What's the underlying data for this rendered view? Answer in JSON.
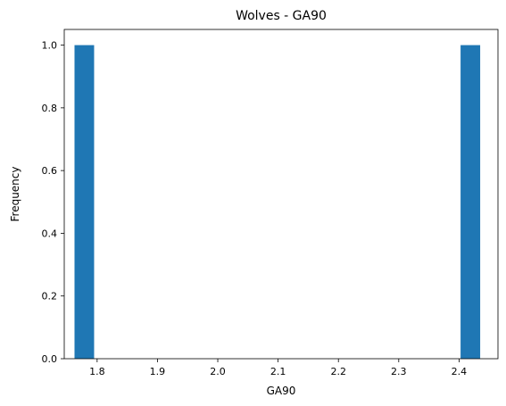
{
  "chart_data": {
    "type": "bar",
    "title": "Wolves - GA90",
    "xlabel": "GA90",
    "ylabel": "Frequency",
    "xlim": [
      1.7455,
      2.4645
    ],
    "ylim": [
      0.0,
      1.05
    ],
    "grid": false,
    "bar_color": "#1f77b4",
    "bin_width": 0.0325,
    "x_ticks": [
      1.8,
      1.9,
      2.0,
      2.1,
      2.2,
      2.3,
      2.4
    ],
    "x_tick_labels": [
      "1.8",
      "1.9",
      "2.0",
      "2.1",
      "2.2",
      "2.3",
      "2.4"
    ],
    "y_ticks": [
      0.0,
      0.2,
      0.4,
      0.6,
      0.8,
      1.0
    ],
    "y_tick_labels": [
      "0.0",
      "0.2",
      "0.4",
      "0.6",
      "0.8",
      "1.0"
    ],
    "bars": [
      {
        "x_start": 1.7625,
        "x_end": 1.795,
        "value": 1
      },
      {
        "x_start": 2.4025,
        "x_end": 2.435,
        "value": 1
      }
    ]
  }
}
